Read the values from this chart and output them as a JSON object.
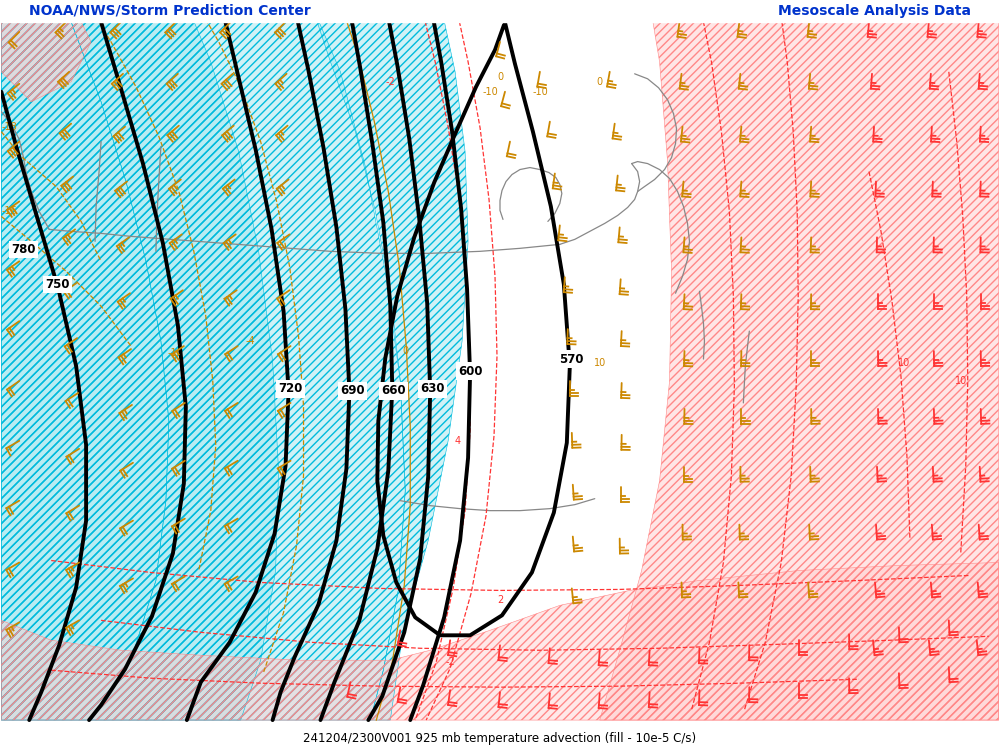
{
  "title_left": "NOAA/NWS/Storm Prediction Center",
  "title_right": "Mesoscale Analysis Data",
  "bottom_label": "241204/2300V001 925 mb temperature advection (fill - 10e-5 C/s)",
  "bg_color": "#ffffff",
  "cyan_hatch_color": "#00bbdd",
  "cyan_face_color": "#aae8f0",
  "pink_hatch_color": "#ff8888",
  "pink_face_color": "#ffcccc",
  "contour_color": "#000000",
  "warm_adv_color": "#ff3333",
  "cold_adv_color": "#cc8800",
  "gray_line_color": "#888888",
  "title_color": "#0033cc",
  "label_bg": "#ffffff"
}
